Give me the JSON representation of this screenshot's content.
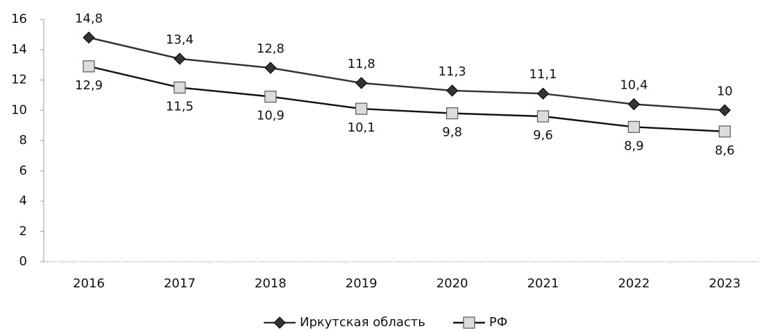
{
  "chart_data": {
    "type": "line",
    "categories": [
      "2016",
      "2017",
      "2018",
      "2019",
      "2020",
      "2021",
      "2022",
      "2023"
    ],
    "series": [
      {
        "name": "Иркутская область",
        "color": "#333333",
        "marker": "diamond",
        "values": [
          14.8,
          13.4,
          12.8,
          11.8,
          11.3,
          11.1,
          10.4,
          10
        ],
        "value_labels": [
          "14,8",
          "13,4",
          "12,8",
          "11,8",
          "11,3",
          "11,1",
          "10,4",
          "10"
        ]
      },
      {
        "name": "РФ",
        "color": "#111111",
        "marker": "square",
        "values": [
          12.9,
          11.5,
          10.9,
          10.1,
          9.8,
          9.6,
          8.9,
          8.6
        ],
        "value_labels": [
          "12,9",
          "11,5",
          "10,9",
          "10,1",
          "9,8",
          "9,6",
          "8,9",
          "8,6"
        ]
      }
    ],
    "ylim": [
      0,
      16
    ],
    "yticks": [
      0,
      2,
      4,
      6,
      8,
      10,
      12,
      14,
      16
    ],
    "grid": false,
    "legend": "bottom"
  }
}
